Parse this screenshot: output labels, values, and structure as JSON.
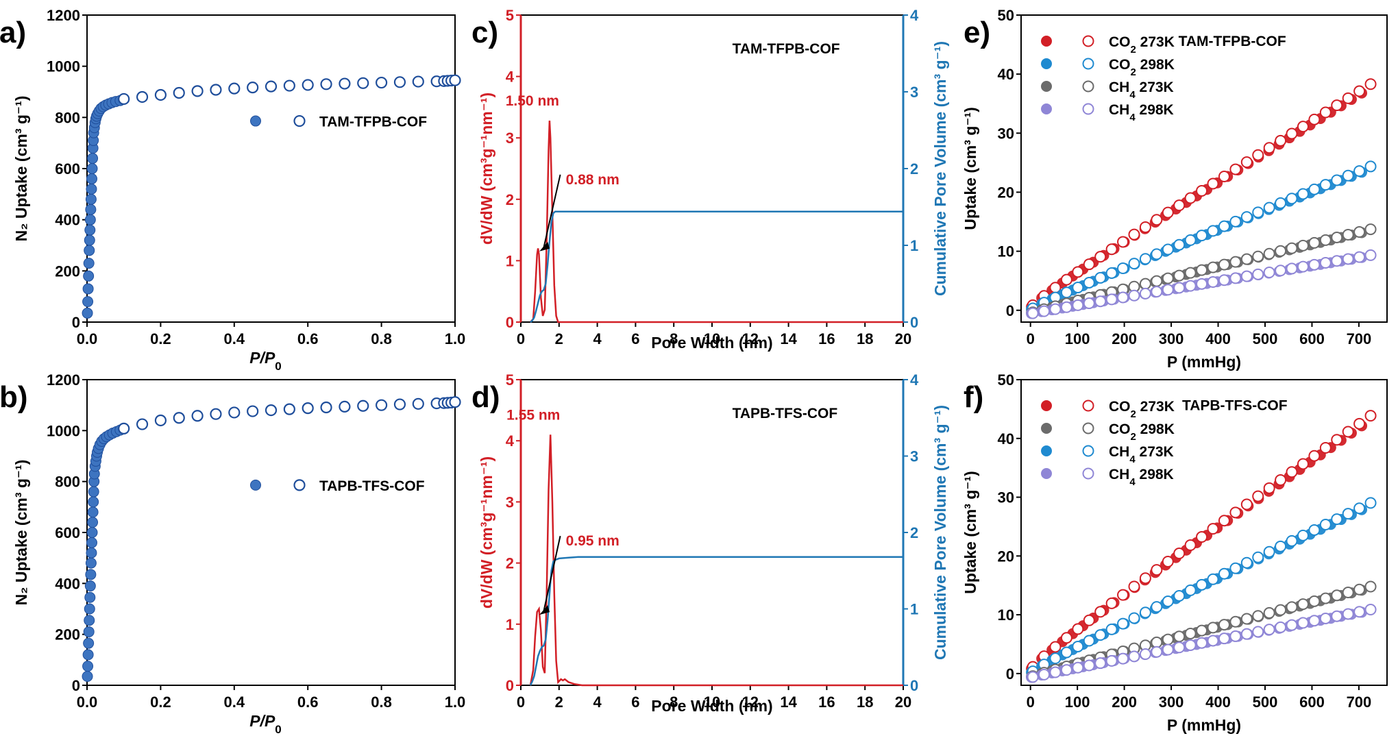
{
  "colors": {
    "blue": "#1f4e9b",
    "blue_fill": "#3d74c0",
    "red": "#d21f26",
    "cyan": "#1f8ad0",
    "gray": "#6b6b6b",
    "purple": "#8f86d6",
    "cum_line": "#1f77b4"
  },
  "chart_data": [
    {
      "id": "a",
      "panel_label": "a)",
      "type": "scatter",
      "xlabel_main": "P/P",
      "xlabel_sub": "0",
      "ylabel": "N₂ Uptake (cm³ g⁻¹)",
      "xlim": [
        0,
        1.0
      ],
      "ylim": [
        0,
        1200
      ],
      "xticks": [
        "0.0",
        "0.2",
        "0.4",
        "0.6",
        "0.8",
        "1.0"
      ],
      "yticks": [
        "0",
        "200",
        "400",
        "600",
        "800",
        "1000",
        "1200"
      ],
      "legend": [
        {
          "label": "TAM-TFPB-COF"
        }
      ],
      "series": [
        {
          "name": "TAM-TFPB-COF",
          "marker": "filled",
          "x": [
            0.001,
            0.002,
            0.003,
            0.004,
            0.005,
            0.006,
            0.007,
            0.008,
            0.009,
            0.01,
            0.011,
            0.012,
            0.013,
            0.014,
            0.015,
            0.016,
            0.017,
            0.018,
            0.02,
            0.022,
            0.024,
            0.026,
            0.029,
            0.033,
            0.038,
            0.044,
            0.051,
            0.059,
            0.068,
            0.078,
            0.09
          ],
          "y": [
            35,
            80,
            130,
            180,
            230,
            280,
            320,
            360,
            400,
            440,
            480,
            520,
            560,
            600,
            640,
            680,
            710,
            740,
            760,
            780,
            795,
            805,
            815,
            825,
            835,
            842,
            848,
            853,
            858,
            862,
            866
          ]
        },
        {
          "name": "TAM-TFPB-COF",
          "marker": "open",
          "x": [
            0.1,
            0.15,
            0.2,
            0.25,
            0.3,
            0.35,
            0.4,
            0.45,
            0.5,
            0.55,
            0.6,
            0.65,
            0.7,
            0.75,
            0.8,
            0.85,
            0.9,
            0.95,
            0.97,
            0.98,
            0.99,
            1.0
          ],
          "y": [
            872,
            880,
            888,
            896,
            903,
            908,
            913,
            917,
            921,
            924,
            927,
            930,
            932,
            934,
            936,
            938,
            940,
            941,
            942,
            943,
            944,
            945
          ]
        }
      ]
    },
    {
      "id": "b",
      "panel_label": "b)",
      "type": "scatter",
      "xlabel_main": "P/P",
      "xlabel_sub": "0",
      "ylabel": "N₂ Uptake (cm³ g⁻¹)",
      "xlim": [
        0,
        1.0
      ],
      "ylim": [
        0,
        1200
      ],
      "xticks": [
        "0.0",
        "0.2",
        "0.4",
        "0.6",
        "0.8",
        "1.0"
      ],
      "yticks": [
        "0",
        "200",
        "400",
        "600",
        "800",
        "1000",
        "1200"
      ],
      "legend": [
        {
          "label": "TAPB-TFS-COF"
        }
      ],
      "series": [
        {
          "name": "TAPB-TFS-COF",
          "marker": "filled",
          "x": [
            0.001,
            0.002,
            0.003,
            0.004,
            0.005,
            0.006,
            0.007,
            0.008,
            0.009,
            0.01,
            0.011,
            0.012,
            0.013,
            0.014,
            0.015,
            0.016,
            0.017,
            0.018,
            0.019,
            0.02,
            0.022,
            0.024,
            0.026,
            0.028,
            0.031,
            0.035,
            0.04,
            0.046,
            0.053,
            0.061,
            0.07,
            0.08,
            0.09
          ],
          "y": [
            35,
            75,
            120,
            165,
            210,
            255,
            300,
            345,
            390,
            435,
            480,
            520,
            560,
            600,
            640,
            680,
            720,
            760,
            800,
            830,
            860,
            880,
            900,
            915,
            930,
            945,
            958,
            968,
            976,
            983,
            990,
            996,
            1002
          ]
        },
        {
          "name": "TAPB-TFS-COF",
          "marker": "open",
          "x": [
            0.1,
            0.15,
            0.2,
            0.25,
            0.3,
            0.35,
            0.4,
            0.45,
            0.5,
            0.55,
            0.6,
            0.65,
            0.7,
            0.75,
            0.8,
            0.85,
            0.9,
            0.95,
            0.97,
            0.98,
            0.99,
            1.0
          ],
          "y": [
            1008,
            1025,
            1040,
            1050,
            1058,
            1065,
            1071,
            1076,
            1080,
            1084,
            1088,
            1091,
            1094,
            1097,
            1100,
            1103,
            1105,
            1107,
            1108,
            1109,
            1110,
            1112
          ]
        }
      ]
    },
    {
      "id": "c",
      "panel_label": "c)",
      "type": "line",
      "title": "TAM-TFPB-COF",
      "xlabel": "Pore Width (nm)",
      "ylabel_left": "dV/dW (cm³g⁻¹nm⁻¹)",
      "ylabel_right": "Cumulative Pore Volume (cm³ g⁻¹)",
      "xlim": [
        0,
        20
      ],
      "ylim_left": [
        0,
        5
      ],
      "ylim_right": [
        0,
        4
      ],
      "xticks": [
        "0",
        "2",
        "4",
        "6",
        "8",
        "10",
        "12",
        "14",
        "16",
        "18",
        "20"
      ],
      "yticks_left": [
        "0",
        "1",
        "2",
        "3",
        "4",
        "5"
      ],
      "yticks_right": [
        "0",
        "1",
        "2",
        "3",
        "4"
      ],
      "annotations": [
        {
          "text": "1.50 nm"
        },
        {
          "text": "0.88 nm"
        }
      ],
      "series": [
        {
          "name": "dV/dW",
          "axis": "left",
          "x": [
            0.5,
            0.65,
            0.75,
            0.85,
            0.9,
            0.95,
            1.05,
            1.15,
            1.25,
            1.35,
            1.45,
            1.5,
            1.55,
            1.65,
            1.75,
            1.85,
            1.95,
            2.1,
            3,
            20
          ],
          "y": [
            0,
            0.05,
            0.5,
            1.1,
            1.2,
            1.1,
            0.4,
            0.1,
            0.2,
            1.3,
            2.8,
            3.28,
            3.0,
            1.8,
            0.6,
            0.1,
            0,
            0,
            0,
            0
          ]
        },
        {
          "name": "Cumulative",
          "axis": "right",
          "x": [
            0.5,
            0.6,
            0.7,
            0.8,
            0.9,
            1.0,
            1.1,
            1.2,
            1.3,
            1.4,
            1.5,
            1.6,
            1.7,
            1.8,
            1.9,
            2.0,
            3,
            5,
            10,
            20
          ],
          "y": [
            0,
            0.02,
            0.06,
            0.15,
            0.25,
            0.35,
            0.4,
            0.42,
            0.5,
            0.75,
            1.05,
            1.3,
            1.42,
            1.44,
            1.44,
            1.44,
            1.44,
            1.44,
            1.44,
            1.44
          ]
        }
      ]
    },
    {
      "id": "d",
      "panel_label": "d)",
      "type": "line",
      "title": "TAPB-TFS-COF",
      "xlabel": "Pore Width (nm)",
      "ylabel_left": "dV/dW (cm³g⁻¹nm⁻¹)",
      "ylabel_right": "Cumulative Pore Volume (cm³ g⁻¹)",
      "xlim": [
        0,
        20
      ],
      "ylim_left": [
        0,
        5
      ],
      "ylim_right": [
        0,
        4
      ],
      "xticks": [
        "0",
        "2",
        "4",
        "6",
        "8",
        "10",
        "12",
        "14",
        "16",
        "18",
        "20"
      ],
      "yticks_left": [
        "0",
        "1",
        "2",
        "3",
        "4",
        "5"
      ],
      "yticks_right": [
        "0",
        "1",
        "2",
        "3",
        "4"
      ],
      "annotations": [
        {
          "text": "1.55 nm"
        },
        {
          "text": "0.95 nm"
        }
      ],
      "series": [
        {
          "name": "dV/dW",
          "axis": "left",
          "x": [
            0.5,
            0.65,
            0.75,
            0.85,
            0.95,
            1.05,
            1.15,
            1.25,
            1.35,
            1.45,
            1.55,
            1.65,
            1.75,
            1.85,
            1.95,
            2.1,
            2.2,
            2.3,
            2.5,
            2.8,
            3.2,
            20
          ],
          "y": [
            0,
            0.25,
            0.8,
            1.2,
            1.25,
            0.9,
            0.3,
            0.2,
            1.5,
            3.2,
            4.1,
            3.0,
            1.5,
            0.4,
            0.05,
            0.1,
            0.08,
            0.1,
            0.05,
            0.02,
            0,
            0
          ]
        },
        {
          "name": "Cumulative",
          "axis": "right",
          "x": [
            0.5,
            0.6,
            0.7,
            0.8,
            0.9,
            1.0,
            1.1,
            1.2,
            1.3,
            1.4,
            1.5,
            1.6,
            1.7,
            1.8,
            2.0,
            2.5,
            3,
            5,
            10,
            20
          ],
          "y": [
            0,
            0.05,
            0.12,
            0.25,
            0.38,
            0.45,
            0.5,
            0.52,
            0.6,
            0.85,
            1.2,
            1.5,
            1.62,
            1.64,
            1.66,
            1.67,
            1.68,
            1.68,
            1.68,
            1.68
          ]
        }
      ]
    },
    {
      "id": "e",
      "panel_label": "e)",
      "type": "scatter",
      "title": "TAM-TFPB-COF",
      "xlabel": "P (mmHg)",
      "ylabel": "Uptake (cm³ g⁻¹)",
      "xlim": [
        -20,
        760
      ],
      "ylim": [
        -2,
        50
      ],
      "xticks": [
        "0",
        "100",
        "200",
        "300",
        "400",
        "500",
        "600",
        "700"
      ],
      "yticks": [
        "0",
        "10",
        "20",
        "30",
        "40",
        "50"
      ],
      "legend": [
        {
          "label": "CO",
          "sub": "2",
          "suffix": " 273K",
          "color": "red"
        },
        {
          "label": "CO",
          "sub": "2",
          "suffix": " 298K",
          "color": "cyan"
        },
        {
          "label": "CH",
          "sub": "4",
          "suffix": " 273K",
          "color": "gray"
        },
        {
          "label": "CH",
          "sub": "4",
          "suffix": " 298K",
          "color": "purple"
        }
      ],
      "series": [
        {
          "name": "CO2 273K",
          "color": "red",
          "endpoint": 39.3,
          "start": 0.3,
          "curv": 0.9
        },
        {
          "name": "CO2 298K",
          "color": "cyan",
          "endpoint": 25.0,
          "start": 0.0,
          "curv": 0.92
        },
        {
          "name": "CH4 273K",
          "color": "gray",
          "endpoint": 14.1,
          "start": -0.5,
          "curv": 0.95
        },
        {
          "name": "CH4 298K",
          "color": "purple",
          "endpoint": 9.6,
          "start": -0.6,
          "curv": 0.97
        }
      ]
    },
    {
      "id": "f",
      "panel_label": "f)",
      "type": "scatter",
      "title": "TAPB-TFS-COF",
      "xlabel": "P (mmHg)",
      "ylabel": "Uptake (cm³ g⁻¹)",
      "xlim": [
        -20,
        760
      ],
      "ylim": [
        -2,
        50
      ],
      "xticks": [
        "0",
        "100",
        "200",
        "300",
        "400",
        "500",
        "600",
        "700"
      ],
      "yticks": [
        "0",
        "10",
        "20",
        "30",
        "40",
        "50"
      ],
      "legend": [
        {
          "label": "CO",
          "sub": "2",
          "suffix": " 273K",
          "color": "red"
        },
        {
          "label": "CO",
          "sub": "2",
          "suffix": " 298K",
          "color": "gray"
        },
        {
          "label": "CH",
          "sub": "4",
          "suffix": " 273K",
          "color": "cyan"
        },
        {
          "label": "CH",
          "sub": "4",
          "suffix": " 298K",
          "color": "purple"
        }
      ],
      "series": [
        {
          "name": "CO2 273K",
          "color": "red",
          "endpoint": 45.0,
          "start": 0.5,
          "curv": 0.9
        },
        {
          "name": "CH4 273K",
          "color": "cyan",
          "endpoint": 29.8,
          "start": 0.0,
          "curv": 0.92
        },
        {
          "name": "CO2 298K",
          "color": "gray",
          "endpoint": 15.2,
          "start": -0.6,
          "curv": 0.95
        },
        {
          "name": "CH4 298K",
          "color": "purple",
          "endpoint": 11.2,
          "start": -0.7,
          "curv": 0.97
        }
      ]
    }
  ]
}
